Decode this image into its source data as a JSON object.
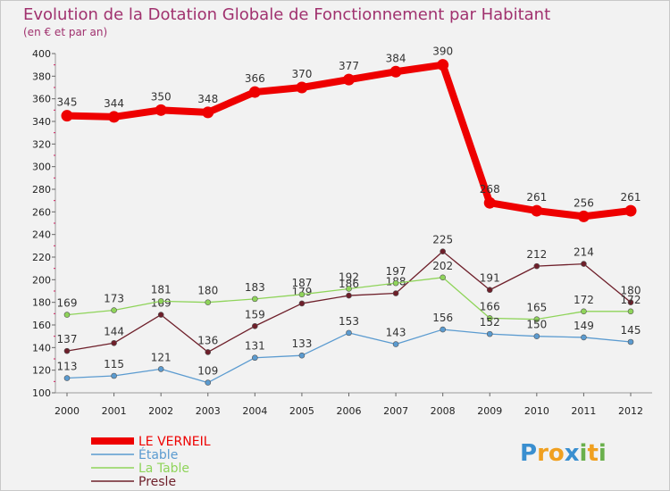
{
  "chart_data": {
    "type": "line",
    "title": "Evolution de la Dotation Globale de Fonctionnement par Habitant",
    "subtitle": "(en € et par an)",
    "xlabel": "",
    "ylabel": "",
    "x": [
      "2000",
      "2001",
      "2002",
      "2003",
      "2004",
      "2005",
      "2006",
      "2007",
      "2008",
      "2009",
      "2010",
      "2011",
      "2012"
    ],
    "ylim": [
      100,
      400
    ],
    "yticks": [
      "100",
      "120",
      "140",
      "160",
      "180",
      "200",
      "220",
      "240",
      "260",
      "280",
      "300",
      "320",
      "340",
      "360",
      "380",
      "400"
    ],
    "grid": false,
    "legend_position": "bottom-left",
    "series": [
      {
        "name": "LE VERNEIL",
        "color": "#ee0000",
        "values": [
          345,
          344,
          350,
          348,
          366,
          370,
          377,
          384,
          390,
          268,
          261,
          256,
          261
        ],
        "labels": [
          "345",
          "344",
          "350",
          "348",
          "366",
          "370",
          "377",
          "384",
          "390",
          "268",
          "261",
          "256",
          "261"
        ]
      },
      {
        "name": "Étable",
        "color": "#5b9bd0",
        "values": [
          113,
          115,
          121,
          109,
          131,
          133,
          153,
          143,
          156,
          152,
          150,
          149,
          145
        ],
        "labels": [
          "113",
          "115",
          "121",
          "109",
          "131",
          "133",
          "153",
          "143",
          "156",
          "152",
          "150",
          "149",
          "145"
        ]
      },
      {
        "name": "La Table",
        "color": "#8fd45a",
        "values": [
          169,
          173,
          181,
          180,
          183,
          187,
          192,
          197,
          202,
          166,
          165,
          172,
          172
        ],
        "labels": [
          "169",
          "173",
          "181",
          "180",
          "183",
          "187",
          "192",
          "197",
          "202",
          "166",
          "165",
          "172",
          "172"
        ]
      },
      {
        "name": "Presle",
        "color": "#6e1f2a",
        "values": [
          137,
          144,
          169,
          136,
          159,
          179,
          186,
          188,
          225,
          191,
          212,
          214,
          180
        ],
        "labels": [
          "137",
          "144",
          "169",
          "136",
          "159",
          "179",
          "186",
          "188",
          "225",
          "191",
          "212",
          "214",
          "180"
        ]
      }
    ]
  },
  "branding": {
    "logo_text": "Proxiti",
    "letters": [
      "P",
      "r",
      "o",
      "x",
      "i",
      "t",
      "i"
    ],
    "letter_colors": [
      "#3a8fd0",
      "#f0a020",
      "#f0a020",
      "#3a8fd0",
      "#6ab04c",
      "#f0a020",
      "#6ab04c"
    ]
  }
}
